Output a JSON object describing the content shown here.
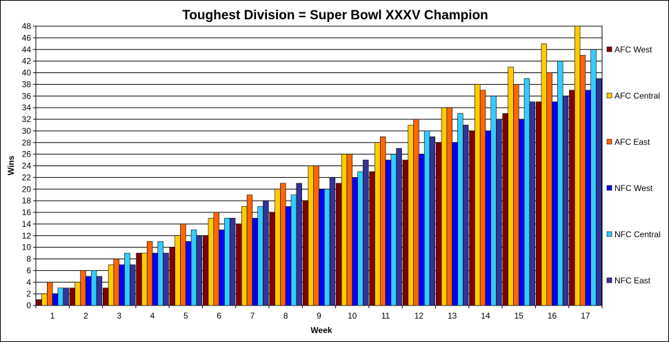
{
  "chart_data": {
    "type": "bar",
    "title": "Toughest Division = Super Bowl XXXV Champion",
    "xlabel": "Week",
    "ylabel": "Wins",
    "ylim": [
      0,
      48
    ],
    "ytick_step": 2,
    "grid": true,
    "legend_position": "right",
    "categories": [
      "1",
      "2",
      "3",
      "4",
      "5",
      "6",
      "7",
      "8",
      "9",
      "10",
      "11",
      "12",
      "13",
      "14",
      "15",
      "16",
      "17"
    ],
    "series": [
      {
        "name": "AFC West",
        "color": "#800000",
        "values": [
          1,
          3,
          3,
          9,
          10,
          12,
          14,
          16,
          18,
          21,
          23,
          25,
          28,
          30,
          33,
          35,
          37
        ]
      },
      {
        "name": "AFC Central",
        "color": "#FFCC00",
        "values": [
          2,
          4,
          7,
          9,
          12,
          15,
          17,
          20,
          24,
          26,
          28,
          31,
          34,
          38,
          41,
          45,
          48
        ]
      },
      {
        "name": "AFC East",
        "color": "#FF6600",
        "values": [
          4,
          6,
          8,
          11,
          14,
          16,
          19,
          21,
          24,
          26,
          29,
          32,
          34,
          37,
          38,
          40,
          43
        ]
      },
      {
        "name": "NFC West",
        "color": "#0000FF",
        "values": [
          2,
          5,
          7,
          9,
          11,
          13,
          15,
          17,
          20,
          22,
          25,
          26,
          28,
          30,
          32,
          35,
          37
        ]
      },
      {
        "name": "NFC Central",
        "color": "#33CCFF",
        "values": [
          3,
          6,
          9,
          11,
          13,
          15,
          17,
          19,
          20,
          23,
          26,
          30,
          33,
          36,
          39,
          42,
          44
        ]
      },
      {
        "name": "NFC East",
        "color": "#333399",
        "values": [
          3,
          5,
          7,
          9,
          12,
          15,
          18,
          21,
          22,
          25,
          27,
          29,
          31,
          32,
          35,
          36,
          39
        ]
      }
    ]
  }
}
